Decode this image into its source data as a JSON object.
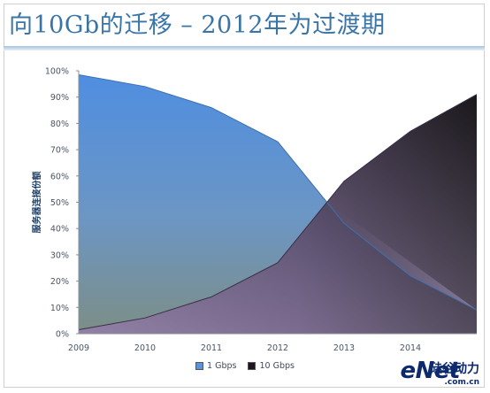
{
  "slide": {
    "title": "向10Gb的迁移  –  2012年为过渡期"
  },
  "chart_data": {
    "type": "area",
    "x": [
      2009,
      2010,
      2011,
      2012,
      2013,
      2014
    ],
    "xtick_labels": [
      "2009",
      "2010",
      "2011",
      "2012",
      "2013",
      "2014"
    ],
    "ylabel": "服务器连接份额",
    "yticks": [
      "0%",
      "10%",
      "20%",
      "30%",
      "40%",
      "50%",
      "60%",
      "70%",
      "80%",
      "90%",
      "100%"
    ],
    "ylim": [
      0,
      100
    ],
    "xlim": [
      2009,
      2015
    ],
    "series": [
      {
        "name": "1 Gbps",
        "color": "#5b93d6",
        "points": [
          [
            2009,
            98.5
          ],
          [
            2010,
            94
          ],
          [
            2011,
            86
          ],
          [
            2012,
            73
          ],
          [
            2013,
            42
          ],
          [
            2014,
            22
          ],
          [
            2015,
            9
          ]
        ]
      },
      {
        "name": "10 Gbps",
        "color": "#1c1620",
        "points": [
          [
            2009,
            1.5
          ],
          [
            2010,
            6
          ],
          [
            2011,
            14
          ],
          [
            2012,
            27
          ],
          [
            2013,
            58
          ],
          [
            2014,
            77
          ],
          [
            2015,
            91
          ]
        ]
      }
    ],
    "legend": "bottom",
    "grid": false
  },
  "logo": {
    "main": "eNet",
    "cn": "硅谷动力",
    "sub": ".com.cn"
  }
}
